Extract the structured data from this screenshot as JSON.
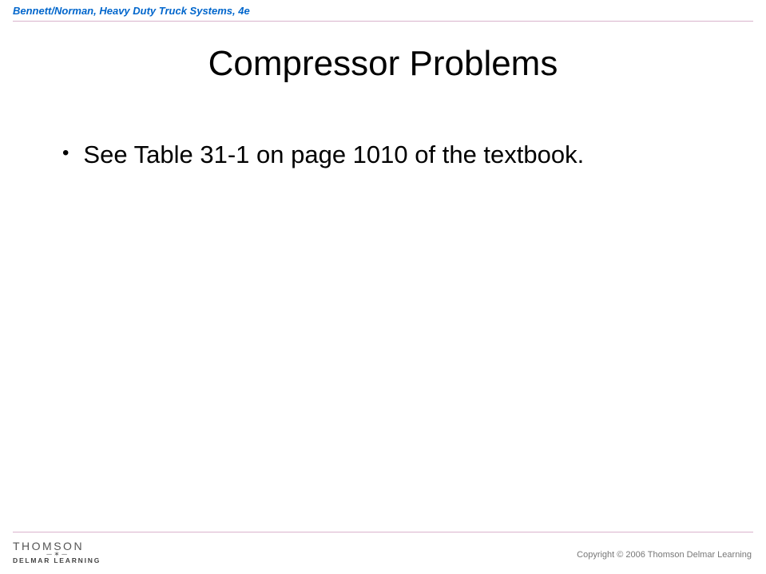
{
  "header": {
    "text": "Bennett/Norman, Heavy Duty Truck Systems, 4e",
    "color": "#0066cc",
    "rule_color": "#d9b3cc"
  },
  "slide": {
    "title": "Compressor Problems",
    "bullets": [
      "See Table 31-1 on page 1010 of the textbook."
    ]
  },
  "footer": {
    "brand_main": "THOMSON",
    "brand_sub": "DELMAR LEARNING",
    "copyright": "Copyright © 2006 Thomson Delmar Learning",
    "rule_color": "#d9b3cc"
  },
  "colors": {
    "background": "#ffffff",
    "title_text": "#000000",
    "body_text": "#000000",
    "footer_text": "#777777",
    "brand_text": "#555555"
  },
  "typography": {
    "title_fontsize": 44,
    "bullet_fontsize": 31,
    "header_fontsize": 13,
    "footer_fontsize": 11
  }
}
